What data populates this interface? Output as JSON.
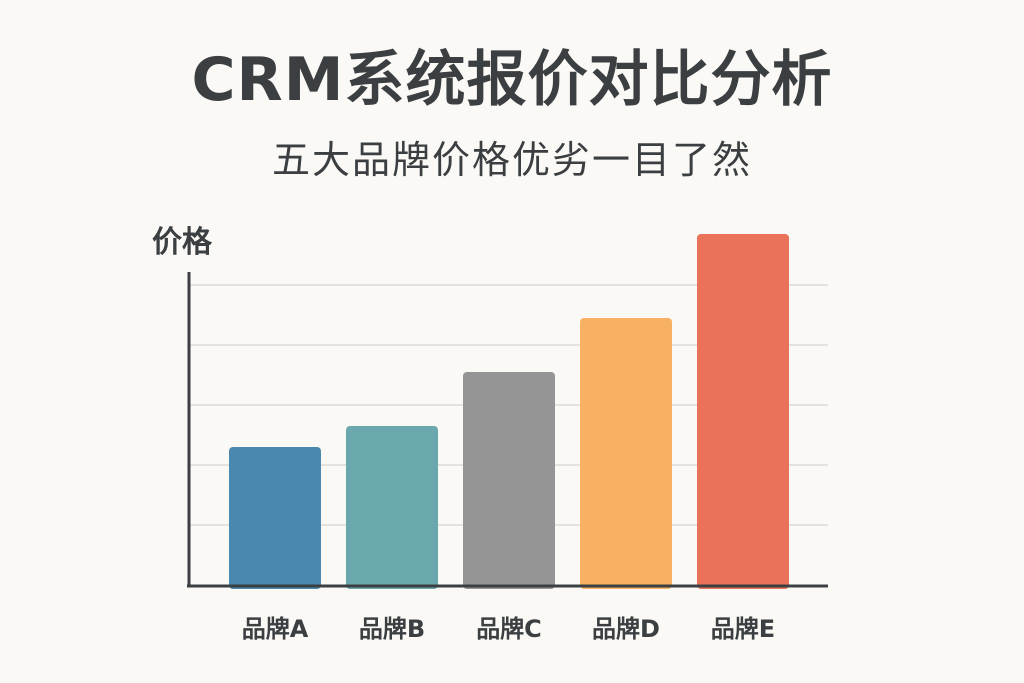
{
  "chart_data": {
    "type": "bar",
    "title": "CRM系统报价对比分析",
    "subtitle": "五大品牌价格优劣一目了然",
    "ylabel": "价格",
    "xlabel": "",
    "categories": [
      "品牌A",
      "品牌B",
      "品牌C",
      "品牌D",
      "品牌E"
    ],
    "values": [
      2.3,
      2.65,
      3.55,
      4.45,
      5.85
    ],
    "colors": [
      "#4a88b0",
      "#6aa8ae",
      "#959596",
      "#f8b063",
      "#eb725a"
    ],
    "ylim": [
      0,
      6
    ],
    "grid": true,
    "legend": "none"
  }
}
